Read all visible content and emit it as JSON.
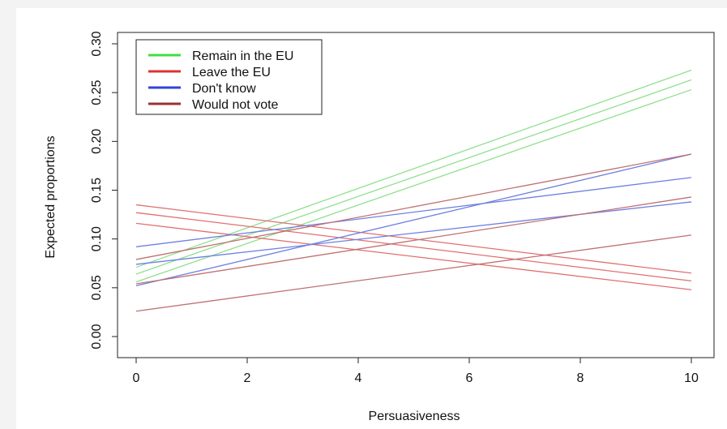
{
  "chart_data": {
    "type": "line",
    "title": "",
    "xlabel": "Persuasiveness",
    "ylabel": "Expected proportions",
    "xlim": [
      0,
      10
    ],
    "ylim": [
      0,
      0.3
    ],
    "xticks": [
      0,
      2,
      4,
      6,
      8,
      10
    ],
    "xtick_labels": [
      "0",
      "2",
      "4",
      "6",
      "8",
      "10"
    ],
    "yticks": [
      0,
      0.05,
      0.1,
      0.15,
      0.2,
      0.25,
      0.3
    ],
    "ytick_labels": [
      "0.00",
      "0.05",
      "0.10",
      "0.15",
      "0.20",
      "0.25",
      "0.30"
    ],
    "grid": false,
    "legend_position": "top-left",
    "legend": [
      {
        "label": "Remain in the EU",
        "color": "#44dd44"
      },
      {
        "label": "Leave the EU",
        "color": "#dd3333"
      },
      {
        "label": "Don't know",
        "color": "#3344dd"
      },
      {
        "label": "Would not vote",
        "color": "#993333"
      }
    ],
    "lines": [
      {
        "group": "Remain in the EU",
        "color": "#8fe08f",
        "x": [
          0,
          10
        ],
        "y": [
          0.071,
          0.273
        ]
      },
      {
        "group": "Remain in the EU",
        "color": "#8fe08f",
        "x": [
          0,
          10
        ],
        "y": [
          0.064,
          0.263
        ]
      },
      {
        "group": "Remain in the EU",
        "color": "#8fe08f",
        "x": [
          0,
          10
        ],
        "y": [
          0.056,
          0.253
        ]
      },
      {
        "group": "Leave the EU",
        "color": "#e07070",
        "x": [
          0,
          10
        ],
        "y": [
          0.135,
          0.065
        ]
      },
      {
        "group": "Leave the EU",
        "color": "#e07070",
        "x": [
          0,
          10
        ],
        "y": [
          0.127,
          0.057
        ]
      },
      {
        "group": "Leave the EU",
        "color": "#e07070",
        "x": [
          0,
          10
        ],
        "y": [
          0.116,
          0.048
        ]
      },
      {
        "group": "Don't know",
        "color": "#7080e0",
        "x": [
          0,
          10
        ],
        "y": [
          0.092,
          0.163
        ]
      },
      {
        "group": "Don't know",
        "color": "#7080e0",
        "x": [
          0,
          10
        ],
        "y": [
          0.074,
          0.138
        ]
      },
      {
        "group": "Don't know",
        "color": "#7080e0",
        "x": [
          0,
          10
        ],
        "y": [
          0.052,
          0.187
        ]
      },
      {
        "group": "Would not vote",
        "color": "#c07070",
        "x": [
          0,
          10
        ],
        "y": [
          0.079,
          0.187
        ]
      },
      {
        "group": "Would not vote",
        "color": "#c07070",
        "x": [
          0,
          10
        ],
        "y": [
          0.054,
          0.143
        ]
      },
      {
        "group": "Would not vote",
        "color": "#c07070",
        "x": [
          0,
          10
        ],
        "y": [
          0.026,
          0.104
        ]
      }
    ]
  }
}
